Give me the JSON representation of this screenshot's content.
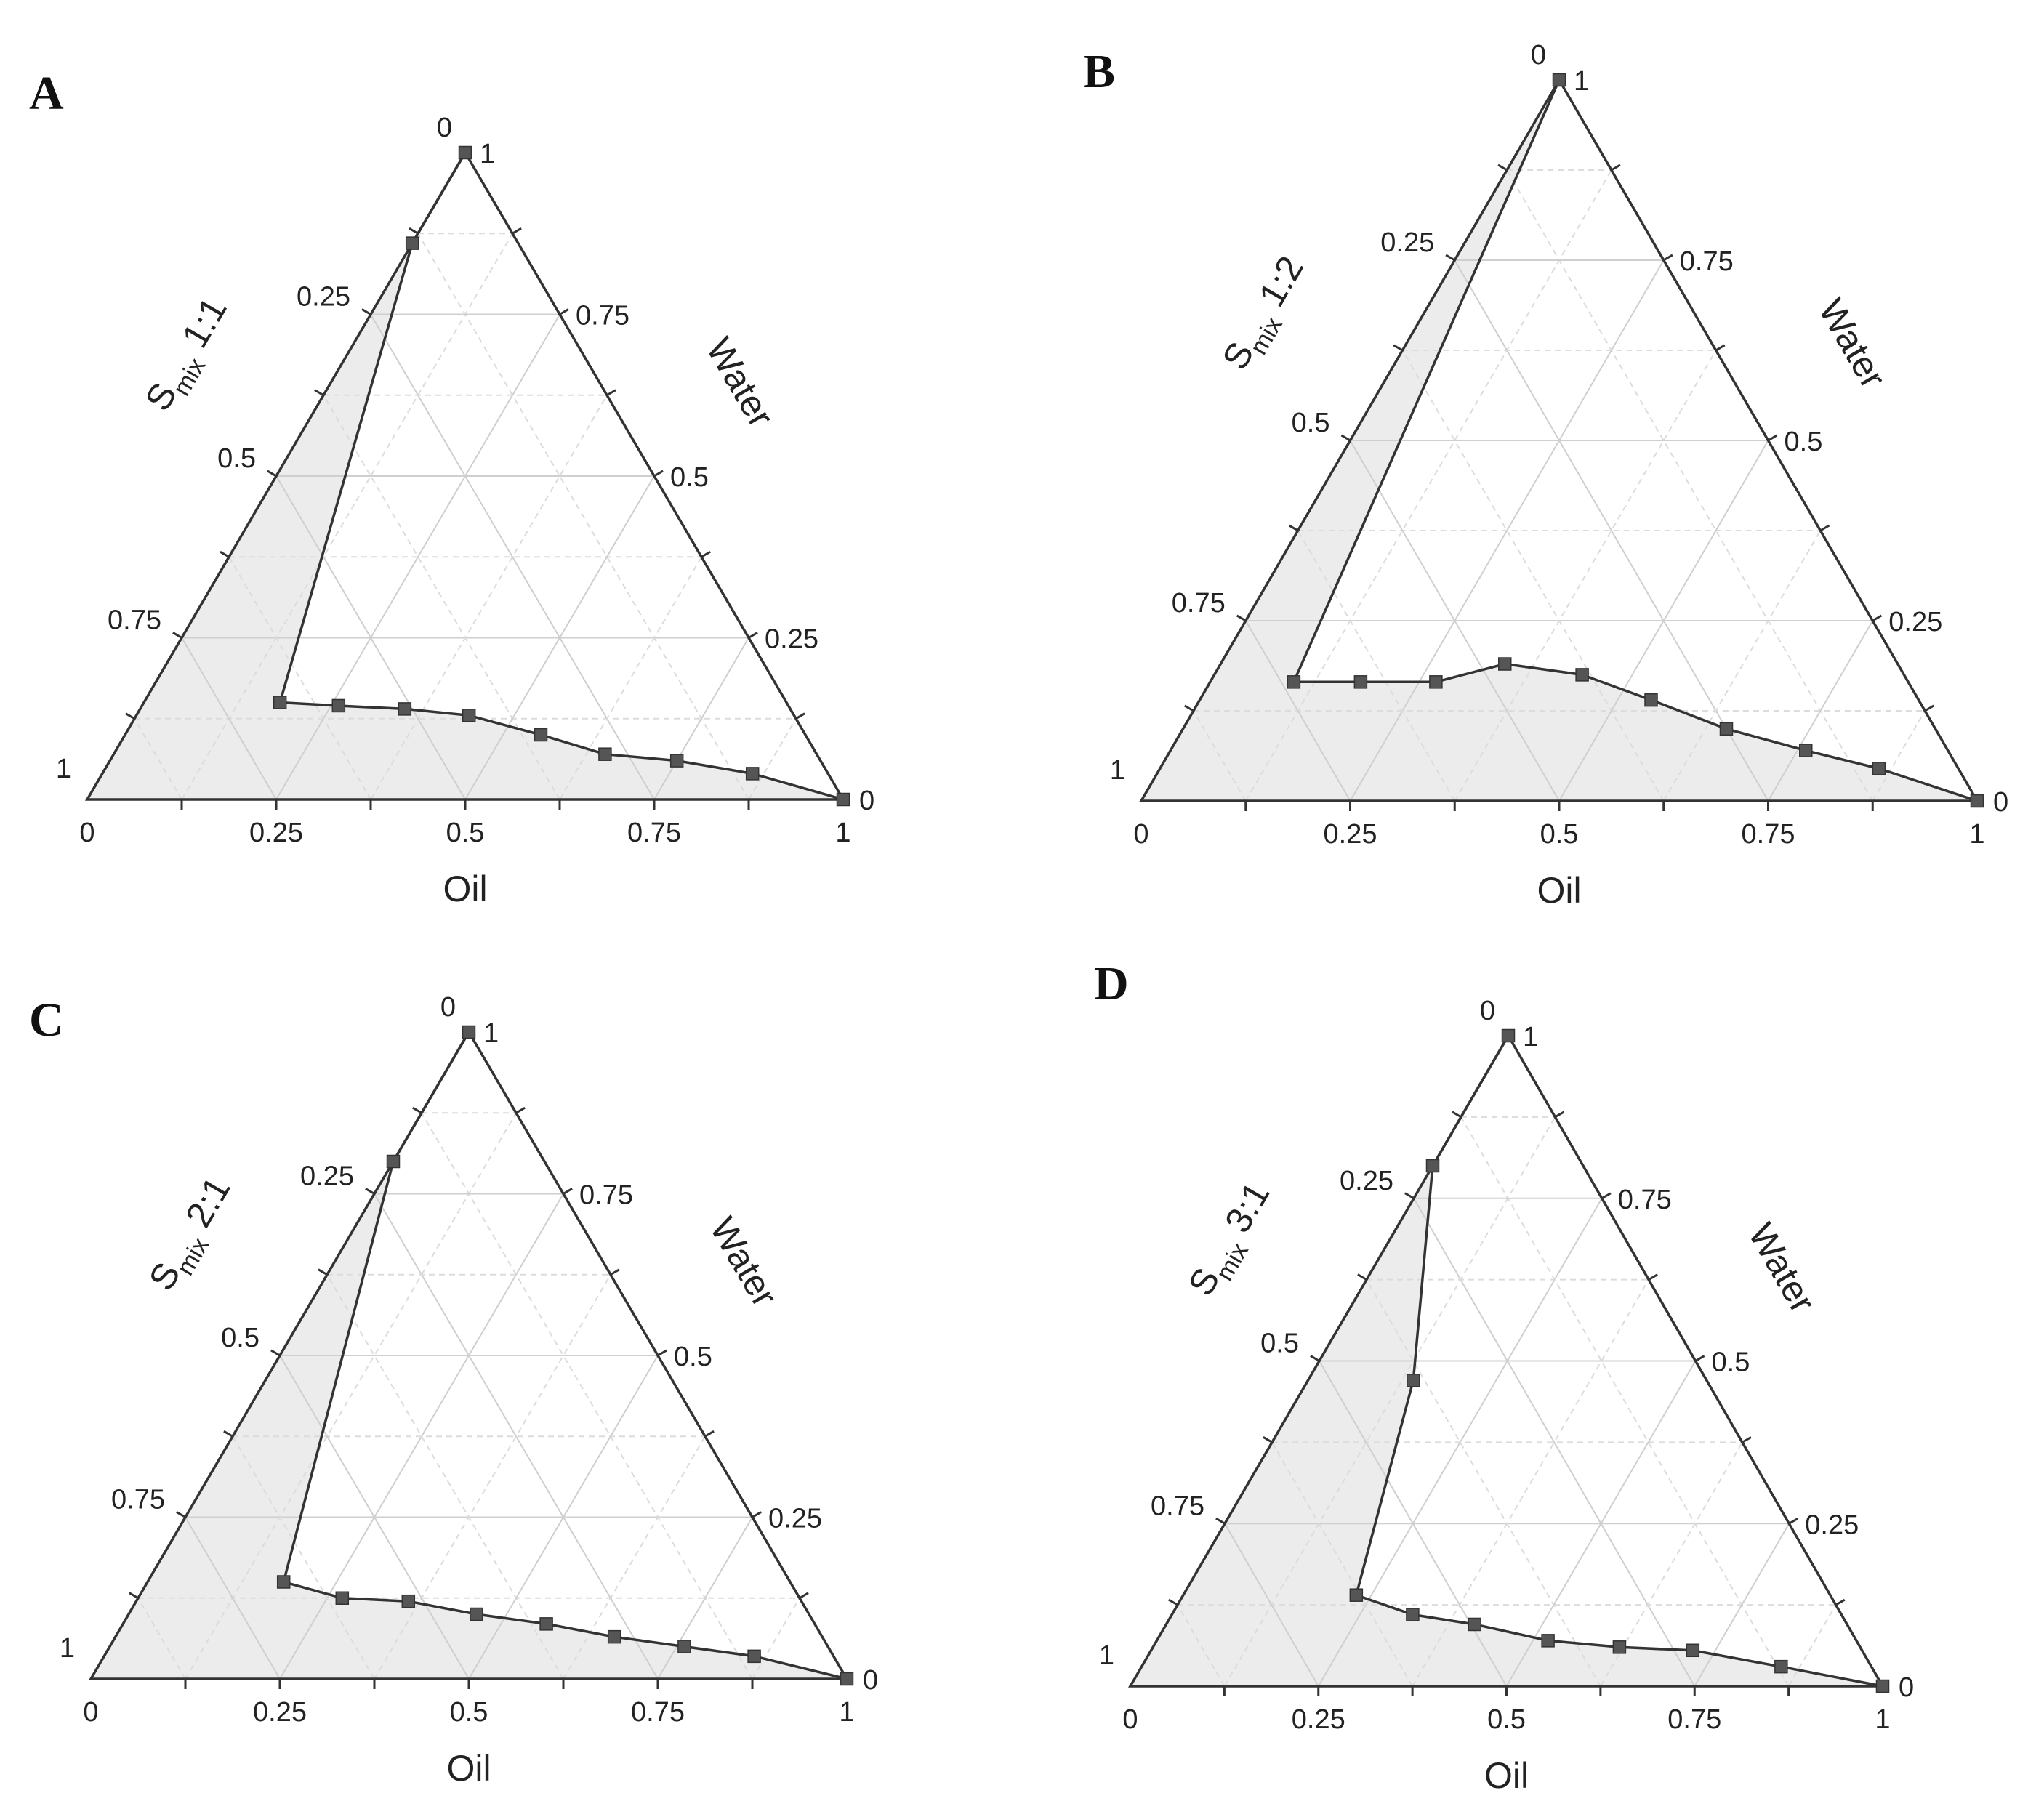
{
  "chart_data": [
    {
      "type": "ternary",
      "panel_label": "A",
      "axes": {
        "bottom": {
          "label": "Oil",
          "ticks": [
            "0",
            "0.25",
            "0.5",
            "0.75",
            "1"
          ]
        },
        "left": {
          "label_main": "S",
          "label_sub": "mix",
          "label_ratio": "1:1",
          "ticks": [
            "0",
            "0.25",
            "0.5",
            "0.75",
            "1"
          ]
        },
        "right": {
          "label": "Water",
          "ticks": [
            "0",
            "0.25",
            "0.5",
            "0.75",
            "1"
          ]
        }
      },
      "boundary": [
        {
          "oil": 0.0,
          "water": 1.0
        },
        {
          "oil": 0.0,
          "water": 0.86
        },
        {
          "oil": 0.18,
          "water": 0.15
        },
        {
          "oil": 0.26,
          "water": 0.145
        },
        {
          "oil": 0.35,
          "water": 0.14
        },
        {
          "oil": 0.44,
          "water": 0.13
        },
        {
          "oil": 0.55,
          "water": 0.1
        },
        {
          "oil": 0.65,
          "water": 0.07
        },
        {
          "oil": 0.75,
          "water": 0.06
        },
        {
          "oil": 0.86,
          "water": 0.04
        },
        {
          "oil": 1.0,
          "water": 0.0
        }
      ]
    },
    {
      "type": "ternary",
      "panel_label": "B",
      "axes": {
        "bottom": {
          "label": "Oil",
          "ticks": [
            "0",
            "0.25",
            "0.5",
            "0.75",
            "1"
          ]
        },
        "left": {
          "label_main": "S",
          "label_sub": "mix",
          "label_ratio": "1:2",
          "ticks": [
            "0",
            "0.25",
            "0.5",
            "0.75",
            "1"
          ]
        },
        "right": {
          "label": "Water",
          "ticks": [
            "0",
            "0.25",
            "0.5",
            "0.75",
            "1"
          ]
        }
      },
      "boundary": [
        {
          "oil": 0.0,
          "water": 1.0
        },
        {
          "oil": 0.1,
          "water": 0.165
        },
        {
          "oil": 0.18,
          "water": 0.165
        },
        {
          "oil": 0.27,
          "water": 0.165
        },
        {
          "oil": 0.34,
          "water": 0.19
        },
        {
          "oil": 0.44,
          "water": 0.175
        },
        {
          "oil": 0.54,
          "water": 0.14
        },
        {
          "oil": 0.65,
          "water": 0.1
        },
        {
          "oil": 0.76,
          "water": 0.07
        },
        {
          "oil": 0.86,
          "water": 0.045
        },
        {
          "oil": 1.0,
          "water": 0.0
        }
      ]
    },
    {
      "type": "ternary",
      "panel_label": "C",
      "axes": {
        "bottom": {
          "label": "Oil",
          "ticks": [
            "0",
            "0.25",
            "0.5",
            "0.75",
            "1"
          ]
        },
        "left": {
          "label_main": "S",
          "label_sub": "mix",
          "label_ratio": "2:1",
          "ticks": [
            "0",
            "0.25",
            "0.5",
            "0.75",
            "1"
          ]
        },
        "right": {
          "label": "Water",
          "ticks": [
            "0",
            "0.25",
            "0.5",
            "0.75",
            "1"
          ]
        }
      },
      "boundary": [
        {
          "oil": 0.0,
          "water": 1.0
        },
        {
          "oil": 0.0,
          "water": 0.8
        },
        {
          "oil": 0.18,
          "water": 0.15
        },
        {
          "oil": 0.27,
          "water": 0.125
        },
        {
          "oil": 0.36,
          "water": 0.12
        },
        {
          "oil": 0.46,
          "water": 0.1
        },
        {
          "oil": 0.56,
          "water": 0.085
        },
        {
          "oil": 0.66,
          "water": 0.065
        },
        {
          "oil": 0.76,
          "water": 0.05
        },
        {
          "oil": 0.86,
          "water": 0.035
        },
        {
          "oil": 1.0,
          "water": 0.0
        }
      ]
    },
    {
      "type": "ternary",
      "panel_label": "D",
      "axes": {
        "bottom": {
          "label": "Oil",
          "ticks": [
            "0",
            "0.25",
            "0.5",
            "0.75",
            "1"
          ]
        },
        "left": {
          "label_main": "S",
          "label_sub": "mix",
          "label_ratio": "3:1",
          "ticks": [
            "0",
            "0.25",
            "0.5",
            "0.75",
            "1"
          ]
        },
        "right": {
          "label": "Water",
          "ticks": [
            "0",
            "0.25",
            "0.5",
            "0.75",
            "1"
          ]
        }
      },
      "boundary": [
        {
          "oil": 0.0,
          "water": 1.0
        },
        {
          "oil": 0.0,
          "water": 0.8
        },
        {
          "oil": 0.14,
          "water": 0.47
        },
        {
          "oil": 0.23,
          "water": 0.14
        },
        {
          "oil": 0.32,
          "water": 0.11
        },
        {
          "oil": 0.41,
          "water": 0.095
        },
        {
          "oil": 0.52,
          "water": 0.07
        },
        {
          "oil": 0.62,
          "water": 0.06
        },
        {
          "oil": 0.72,
          "water": 0.055
        },
        {
          "oil": 0.85,
          "water": 0.03
        },
        {
          "oil": 1.0,
          "water": 0.0
        }
      ]
    }
  ]
}
